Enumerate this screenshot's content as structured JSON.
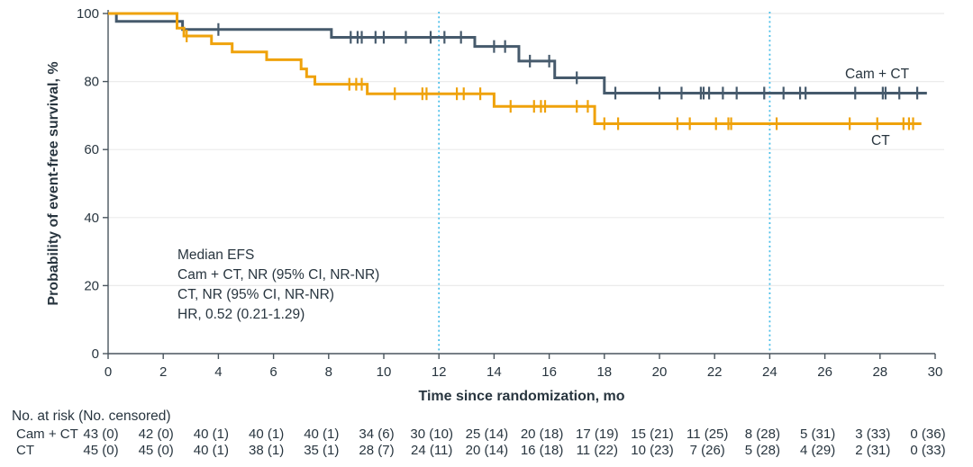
{
  "figure": {
    "kind": "kaplan-meier-survival-plot",
    "background": "#ffffff",
    "accent_colors": {
      "cam_ct_curve": "#465A6C",
      "ct_curve": "#EFA20B",
      "reference_line": "#4DBFE9",
      "grid": "#EBEBEB",
      "axis": "#4A555E",
      "text": "#28353F"
    }
  },
  "chart_data": {
    "type": "line",
    "subtype": "kaplan-meier-step",
    "title": "",
    "xlabel": "Time since randomization, mo",
    "ylabel": "Probability of event-free survival, %",
    "xlim": [
      0,
      30
    ],
    "ylim": [
      0,
      100
    ],
    "xticks": [
      0,
      2,
      4,
      6,
      8,
      10,
      12,
      14,
      16,
      18,
      20,
      22,
      24,
      26,
      28,
      30
    ],
    "yticks": [
      0,
      20,
      40,
      60,
      80,
      100
    ],
    "grid": "horizontal-light",
    "legend_position": "curve-end-labels",
    "reference_lines_x": [
      12,
      24
    ],
    "series": [
      {
        "name": "Cam + CT",
        "label": "Cam + CT",
        "color": "#465A6C",
        "steps": [
          [
            0,
            100
          ],
          [
            0.3,
            97.7
          ],
          [
            2.7,
            95.3
          ],
          [
            8.1,
            93.0
          ],
          [
            13.3,
            90.3
          ],
          [
            14.9,
            86.0
          ],
          [
            16.2,
            81.1
          ],
          [
            18.0,
            76.6
          ]
        ],
        "end_x": 29.7,
        "censor_x": [
          4.0,
          8.8,
          9.05,
          9.2,
          9.7,
          10.0,
          10.8,
          11.7,
          12.2,
          12.8,
          14.0,
          14.4,
          15.3,
          16.0,
          17.0,
          18.4,
          20.0,
          20.8,
          21.5,
          21.6,
          21.8,
          22.3,
          22.8,
          23.8,
          24.5,
          25.1,
          25.3,
          27.1,
          28.1,
          28.2,
          28.7,
          29.35
        ]
      },
      {
        "name": "CT",
        "label": "CT",
        "color": "#EFA20B",
        "steps": [
          [
            0,
            100
          ],
          [
            2.5,
            95.7
          ],
          [
            2.75,
            93.4
          ],
          [
            3.75,
            91.1
          ],
          [
            4.5,
            88.7
          ],
          [
            5.75,
            86.4
          ],
          [
            7.0,
            83.7
          ],
          [
            7.2,
            81.4
          ],
          [
            7.5,
            79.2
          ],
          [
            9.4,
            76.4
          ],
          [
            14.0,
            72.7
          ],
          [
            17.65,
            67.6
          ]
        ],
        "end_x": 29.5,
        "censor_x": [
          2.85,
          8.75,
          9.0,
          9.2,
          10.4,
          11.4,
          11.55,
          12.65,
          12.9,
          13.5,
          14.6,
          15.45,
          15.7,
          15.85,
          17.0,
          17.4,
          18.0,
          18.5,
          20.65,
          21.1,
          22.05,
          22.5,
          22.6,
          24.25,
          26.9,
          27.9,
          28.85,
          29.05,
          29.2
        ]
      }
    ],
    "annotation": {
      "lines": [
        "Median EFS",
        "Cam + CT, NR (95% CI, NR-NR)",
        "CT, NR (95% CI, NR-NR)",
        "HR, 0.52 (0.21-1.29)"
      ]
    },
    "risk_table": {
      "header": "No. at risk (No. censored)",
      "times": [
        0,
        2,
        4,
        6,
        8,
        10,
        12,
        14,
        16,
        18,
        20,
        22,
        24,
        26,
        28,
        30
      ],
      "rows": [
        {
          "name": "Cam + CT",
          "values": [
            "43 (0)",
            "42 (0)",
            "40 (1)",
            "40 (1)",
            "40 (1)",
            "34 (6)",
            "30 (10)",
            "25 (14)",
            "20 (18)",
            "17 (19)",
            "15 (21)",
            "11 (25)",
            "8 (28)",
            "5 (31)",
            "3 (33)",
            "0 (36)"
          ]
        },
        {
          "name": "CT",
          "values": [
            "45 (0)",
            "45 (0)",
            "40 (1)",
            "38 (1)",
            "35 (1)",
            "28 (7)",
            "24 (11)",
            "20 (14)",
            "16 (18)",
            "11 (22)",
            "10 (23)",
            "7 (26)",
            "5 (28)",
            "4 (29)",
            "2 (31)",
            "0 (33)"
          ]
        }
      ]
    }
  }
}
